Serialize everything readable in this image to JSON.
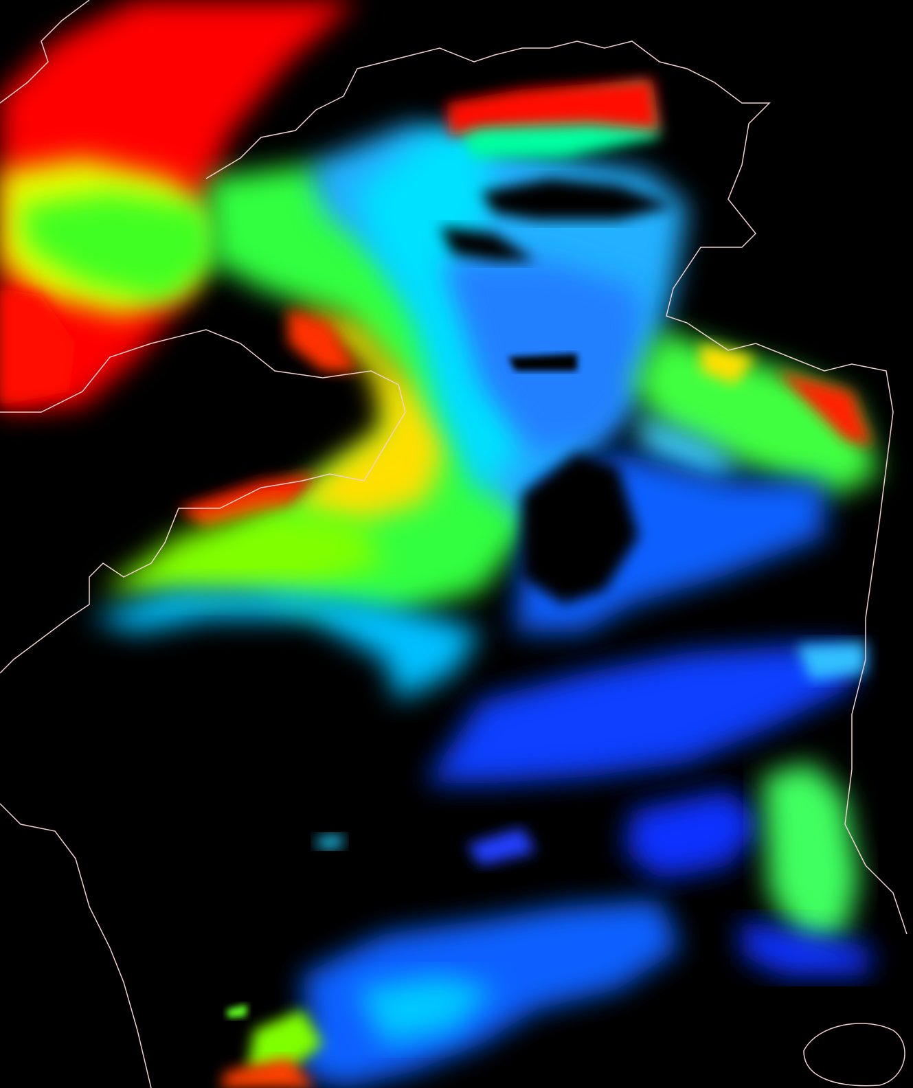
{
  "map": {
    "background_color": "#000000",
    "coastline_color": "#f2d0d0",
    "colormap": [
      "#0000ff",
      "#0080ff",
      "#00e0ff",
      "#00ff80",
      "#80ff00",
      "#ffff00",
      "#ff8000",
      "#ff0000"
    ]
  }
}
